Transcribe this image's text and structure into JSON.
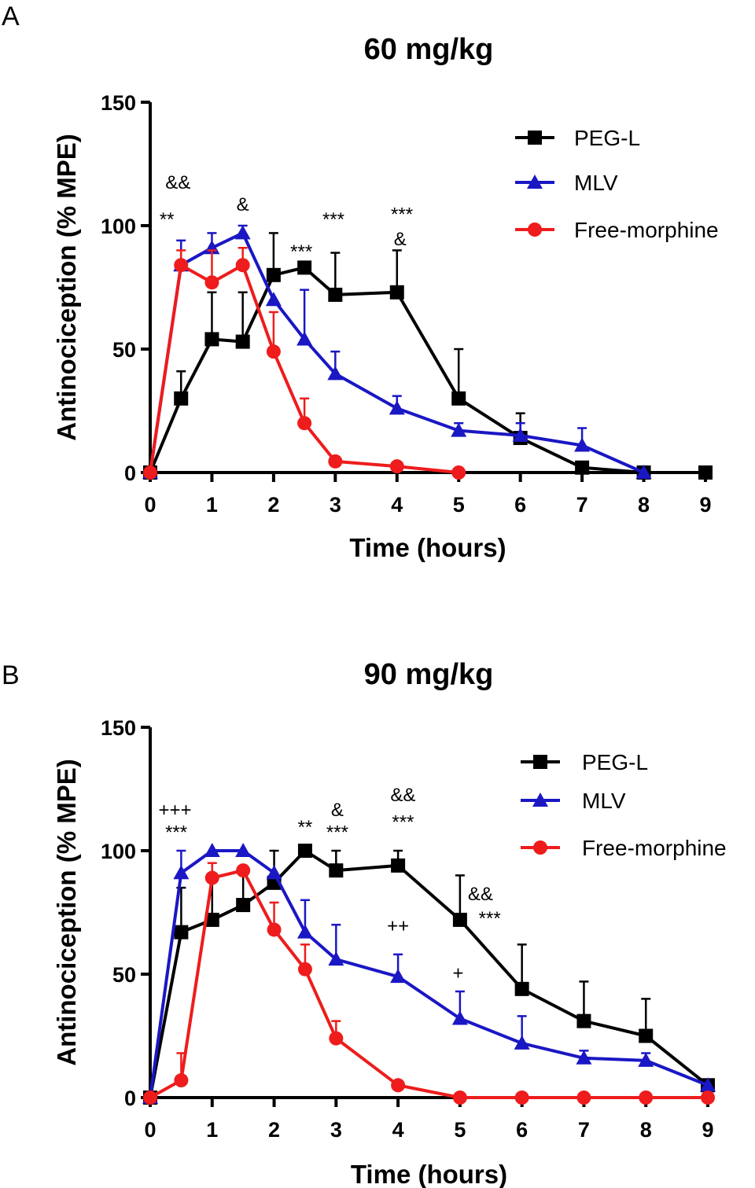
{
  "chart_data": [
    {
      "type": "line",
      "panel_label": "A",
      "title": "60 mg/kg",
      "xlabel": "Time (hours)",
      "ylabel": "Antinociception (% MPE)",
      "xlim": [
        0,
        9
      ],
      "ylim": [
        0,
        150
      ],
      "xticks": [
        0,
        1,
        2,
        3,
        4,
        5,
        6,
        7,
        8,
        9
      ],
      "yticks": [
        0,
        50,
        100,
        150
      ],
      "legend_position": "top-right",
      "series": [
        {
          "name": "PEG-L",
          "color": "#000000",
          "marker": "square",
          "x": [
            0,
            0.5,
            1,
            1.5,
            2,
            2.5,
            3,
            4,
            5,
            6,
            7,
            8,
            9
          ],
          "y": [
            0,
            30,
            54,
            53,
            80,
            83,
            72,
            73,
            30,
            14,
            2,
            0,
            0
          ],
          "err": [
            0,
            11,
            19,
            20,
            17,
            0,
            17,
            17,
            20,
            10,
            0,
            0,
            0
          ]
        },
        {
          "name": "MLV",
          "color": "#1a17c4",
          "marker": "triangle",
          "x": [
            0,
            0.5,
            1,
            1.5,
            2,
            2.5,
            3,
            4,
            5,
            6,
            7,
            8
          ],
          "y": [
            0,
            84,
            91,
            97,
            70,
            54,
            40,
            26,
            17,
            15,
            11,
            0
          ],
          "err": [
            0,
            10,
            6,
            3,
            0,
            20,
            9,
            5,
            3,
            5,
            7,
            0
          ]
        },
        {
          "name": "Free-morphine",
          "color": "#ee1c1c",
          "marker": "circle",
          "x": [
            0,
            0.5,
            1,
            1.5,
            2,
            2.5,
            3,
            4,
            5
          ],
          "y": [
            0,
            84,
            77,
            84,
            49,
            20,
            4.5,
            2.5,
            0
          ],
          "err": [
            0,
            6,
            13,
            7,
            16,
            10,
            0,
            0,
            0
          ]
        }
      ],
      "annotations": [
        {
          "text": "&&",
          "x": 0.45,
          "y": 115
        },
        {
          "text": "**",
          "x": 0.27,
          "y": 100
        },
        {
          "text": "&",
          "x": 1.5,
          "y": 106
        },
        {
          "text": "***",
          "x": 2.45,
          "y": 87
        },
        {
          "text": "***",
          "x": 2.97,
          "y": 100
        },
        {
          "text": "***",
          "x": 4.08,
          "y": 102
        },
        {
          "text": "&",
          "x": 4.05,
          "y": 92
        }
      ]
    },
    {
      "type": "line",
      "panel_label": "B",
      "title": "90 mg/kg",
      "xlabel": "Time (hours)",
      "ylabel": "Antinociception (% MPE)",
      "xlim": [
        0,
        9
      ],
      "ylim": [
        0,
        150
      ],
      "xticks": [
        0,
        1,
        2,
        3,
        4,
        5,
        6,
        7,
        8,
        9
      ],
      "yticks": [
        0,
        50,
        100,
        150
      ],
      "legend_position": "top-right",
      "series": [
        {
          "name": "PEG-L",
          "color": "#000000",
          "marker": "square",
          "x": [
            0,
            0.5,
            1,
            1.5,
            2,
            2.5,
            3,
            4,
            5,
            6,
            7,
            8,
            9
          ],
          "y": [
            0,
            67,
            72,
            78,
            87,
            100,
            92,
            94,
            72,
            44,
            31,
            25,
            5
          ],
          "err": [
            0,
            18,
            18,
            14,
            13,
            0,
            8,
            6,
            18,
            18,
            16,
            15,
            0
          ]
        },
        {
          "name": "MLV",
          "color": "#1a17c4",
          "marker": "triangle",
          "x": [
            0,
            0.5,
            1,
            1.5,
            2,
            2.5,
            3,
            4,
            5,
            6,
            7,
            8,
            9
          ],
          "y": [
            0,
            91,
            100,
            100,
            91,
            67,
            56,
            49,
            32,
            22,
            16,
            15,
            5
          ],
          "err": [
            0,
            9,
            0,
            0,
            0,
            13,
            14,
            9,
            11,
            11,
            3,
            3,
            0
          ]
        },
        {
          "name": "Free-morphine",
          "color": "#ee1c1c",
          "marker": "circle",
          "x": [
            0,
            0.5,
            1,
            1.5,
            2,
            2.5,
            3,
            4,
            5,
            6,
            7,
            8,
            9
          ],
          "y": [
            0,
            7,
            89,
            92,
            68,
            52,
            24,
            5,
            0,
            0,
            0,
            0,
            0
          ],
          "err": [
            0,
            11,
            6,
            0,
            11,
            10,
            7,
            0,
            0,
            0,
            0,
            0,
            0
          ]
        }
      ],
      "annotations": [
        {
          "text": "+++",
          "x": 0.4,
          "y": 114
        },
        {
          "text": "***",
          "x": 0.42,
          "y": 105
        },
        {
          "text": "**",
          "x": 2.5,
          "y": 107
        },
        {
          "text": "&",
          "x": 3.02,
          "y": 114
        },
        {
          "text": "***",
          "x": 3.02,
          "y": 105
        },
        {
          "text": "&&",
          "x": 4.08,
          "y": 120
        },
        {
          "text": "***",
          "x": 4.08,
          "y": 109
        },
        {
          "text": "++",
          "x": 4.0,
          "y": 67
        },
        {
          "text": "&&",
          "x": 5.33,
          "y": 80
        },
        {
          "text": "***",
          "x": 5.48,
          "y": 70
        },
        {
          "text": "+",
          "x": 4.97,
          "y": 48
        }
      ]
    }
  ]
}
